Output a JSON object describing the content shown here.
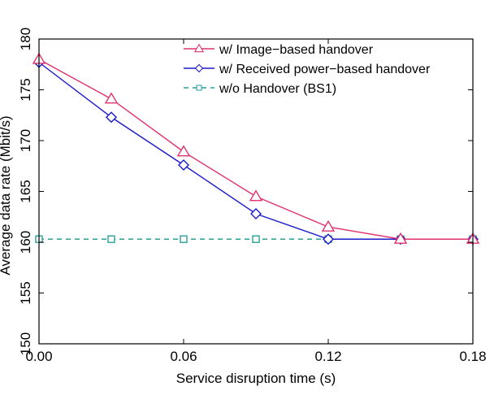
{
  "chart_data": {
    "type": "line",
    "title": "",
    "xlabel": "Service disruption time (s)",
    "ylabel": "Average data rate (Mbit/s)",
    "xlim": [
      0.0,
      0.18
    ],
    "ylim": [
      150,
      180
    ],
    "xticks": [
      0.0,
      0.06,
      0.12,
      0.18
    ],
    "xtick_labels": [
      "0.00",
      "0.06",
      "0.12",
      "0.18"
    ],
    "yticks": [
      150,
      155,
      160,
      165,
      170,
      175,
      180
    ],
    "ytick_labels": [
      "150",
      "155",
      "160",
      "165",
      "170",
      "175",
      "180"
    ],
    "grid": false,
    "legend_position": "top-right",
    "series": [
      {
        "name": "w/ Image−based handover",
        "color": "#e0336f",
        "marker": "triangle",
        "line": "solid",
        "x": [
          0.0,
          0.03,
          0.06,
          0.09,
          0.12,
          0.15,
          0.18
        ],
        "y": [
          178.0,
          174.1,
          168.9,
          164.5,
          161.5,
          160.3,
          160.3
        ]
      },
      {
        "name": "w/ Received power−based handover",
        "color": "#1a1acc",
        "marker": "diamond",
        "line": "solid",
        "x": [
          0.0,
          0.03,
          0.06,
          0.09,
          0.12,
          0.15,
          0.18
        ],
        "y": [
          177.7,
          172.3,
          167.6,
          162.8,
          160.3,
          160.3,
          160.3
        ]
      },
      {
        "name": "w/o Handover (BS1)",
        "color": "#2aa198",
        "marker": "square",
        "line": "dashed",
        "x": [
          0.0,
          0.03,
          0.06,
          0.09,
          0.12,
          0.15,
          0.18
        ],
        "y": [
          160.3,
          160.3,
          160.3,
          160.3,
          160.3,
          160.3,
          160.3
        ]
      }
    ]
  }
}
